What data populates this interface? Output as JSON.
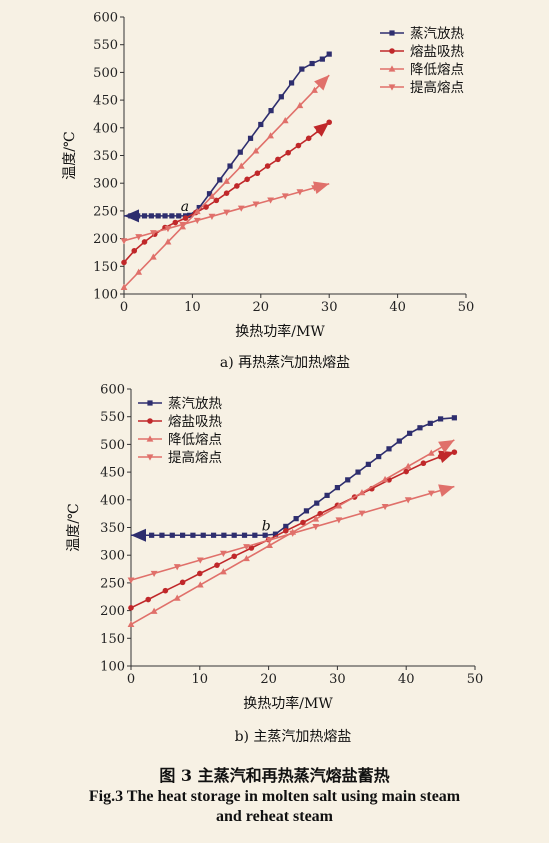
{
  "chart_data": [
    {
      "type": "line",
      "sublabel": "a) 再热蒸汽加热熔盐",
      "xlabel": "换热功率/MW",
      "ylabel": "温度/℃",
      "xlim": [
        0,
        50
      ],
      "ylim": [
        100,
        600
      ],
      "xticks": [
        0,
        10,
        20,
        30,
        40,
        50
      ],
      "yticks": [
        100,
        150,
        200,
        250,
        300,
        350,
        400,
        450,
        500,
        550,
        600
      ],
      "grid": false,
      "legend_position": "top-right",
      "point_label": {
        "text": "a",
        "x": 8.3,
        "y": 250
      },
      "series": [
        {
          "name": "蒸汽放热",
          "color": "#2e2e6e",
          "marker": "square",
          "end_arrow": false,
          "start_arrow": true,
          "x": [
            0,
            1,
            2,
            3,
            4,
            5,
            6,
            7,
            8,
            9,
            9.6,
            11,
            12.5,
            14,
            15.5,
            17,
            18.5,
            20,
            21.5,
            23,
            24.5,
            26,
            27.5,
            29,
            30
          ],
          "y": [
            241,
            241,
            241,
            241,
            241,
            241,
            241,
            241,
            241,
            241,
            242,
            256,
            281,
            306,
            331,
            356,
            381,
            406,
            431,
            456,
            481,
            506,
            516,
            524,
            533
          ]
        },
        {
          "name": "熔盐吸热",
          "color": "#c0282a",
          "marker": "circle",
          "end_arrow": true,
          "x": [
            0,
            1.5,
            3,
            4.5,
            6,
            7.5,
            9,
            10.5,
            12,
            13.5,
            15,
            16.5,
            18,
            19.5,
            21,
            22.5,
            24,
            25.5,
            27,
            28.5,
            30
          ],
          "y": [
            157,
            178,
            194,
            208,
            220,
            229,
            237,
            247,
            257,
            269,
            282,
            295,
            307,
            318,
            331,
            343,
            355,
            368,
            381,
            395,
            410
          ]
        },
        {
          "name": "降低熔点",
          "color": "#e0706a",
          "marker": "triangle-up",
          "end_arrow": true,
          "x": [
            0,
            30
          ],
          "y": [
            112,
            495
          ]
        },
        {
          "name": "提高熔点",
          "color": "#e0706a",
          "marker": "triangle-down",
          "end_arrow": true,
          "x": [
            0,
            30
          ],
          "y": [
            196,
            299
          ]
        }
      ]
    },
    {
      "type": "line",
      "sublabel": "b) 主蒸汽加热熔盐",
      "xlabel": "换热功率/MW",
      "ylabel": "温度/℃",
      "xlim": [
        0,
        50
      ],
      "ylim": [
        100,
        600
      ],
      "xticks": [
        0,
        10,
        20,
        30,
        40,
        50
      ],
      "yticks": [
        100,
        150,
        200,
        250,
        300,
        350,
        400,
        450,
        500,
        550,
        600
      ],
      "grid": false,
      "legend_position": "top-left",
      "point_label": {
        "text": "b",
        "x": 19,
        "y": 345
      },
      "series": [
        {
          "name": "蒸汽放热",
          "color": "#2e2e6e",
          "marker": "square",
          "end_arrow": false,
          "start_arrow": true,
          "x": [
            0,
            1.5,
            3,
            4.5,
            6,
            7.5,
            9,
            10.5,
            12,
            13.5,
            15,
            16.5,
            18,
            19.5,
            21,
            22.5,
            24,
            25.5,
            27,
            28.5,
            30,
            31.5,
            33,
            34.5,
            36,
            37.5,
            39,
            40.5,
            42,
            43.5,
            45,
            47
          ],
          "y": [
            336,
            336,
            336,
            336,
            336,
            336,
            336,
            336,
            336,
            336,
            336,
            336,
            336,
            336,
            338,
            352,
            366,
            380,
            394,
            408,
            422,
            436,
            450,
            464,
            478,
            492,
            506,
            520,
            530,
            538,
            546,
            548
          ]
        },
        {
          "name": "熔盐吸热",
          "color": "#c0282a",
          "marker": "circle",
          "end_arrow": true,
          "x": [
            0,
            2.5,
            5,
            7.5,
            10,
            12.5,
            15,
            17.5,
            20,
            22.5,
            25,
            27.5,
            30,
            32.5,
            35,
            37.5,
            40,
            42.5,
            45,
            47
          ],
          "y": [
            205,
            220,
            236,
            251,
            267,
            282,
            298,
            313,
            328,
            344,
            359,
            375,
            390,
            405,
            420,
            436,
            451,
            466,
            478,
            486
          ]
        },
        {
          "name": "降低熔点",
          "color": "#e0706a",
          "marker": "triangle-up",
          "end_arrow": true,
          "x": [
            0,
            47
          ],
          "y": [
            175,
            508
          ]
        },
        {
          "name": "提高熔点",
          "color": "#e0706a",
          "marker": "triangle-down",
          "end_arrow": true,
          "x": [
            0,
            47
          ],
          "y": [
            255,
            424
          ]
        }
      ]
    }
  ],
  "caption": {
    "cn": "图 3  主蒸汽和再热蒸汽熔盐蓄热",
    "en_line1": "Fig.3 The heat storage in molten salt using main steam",
    "en_line2": "and reheat steam"
  }
}
